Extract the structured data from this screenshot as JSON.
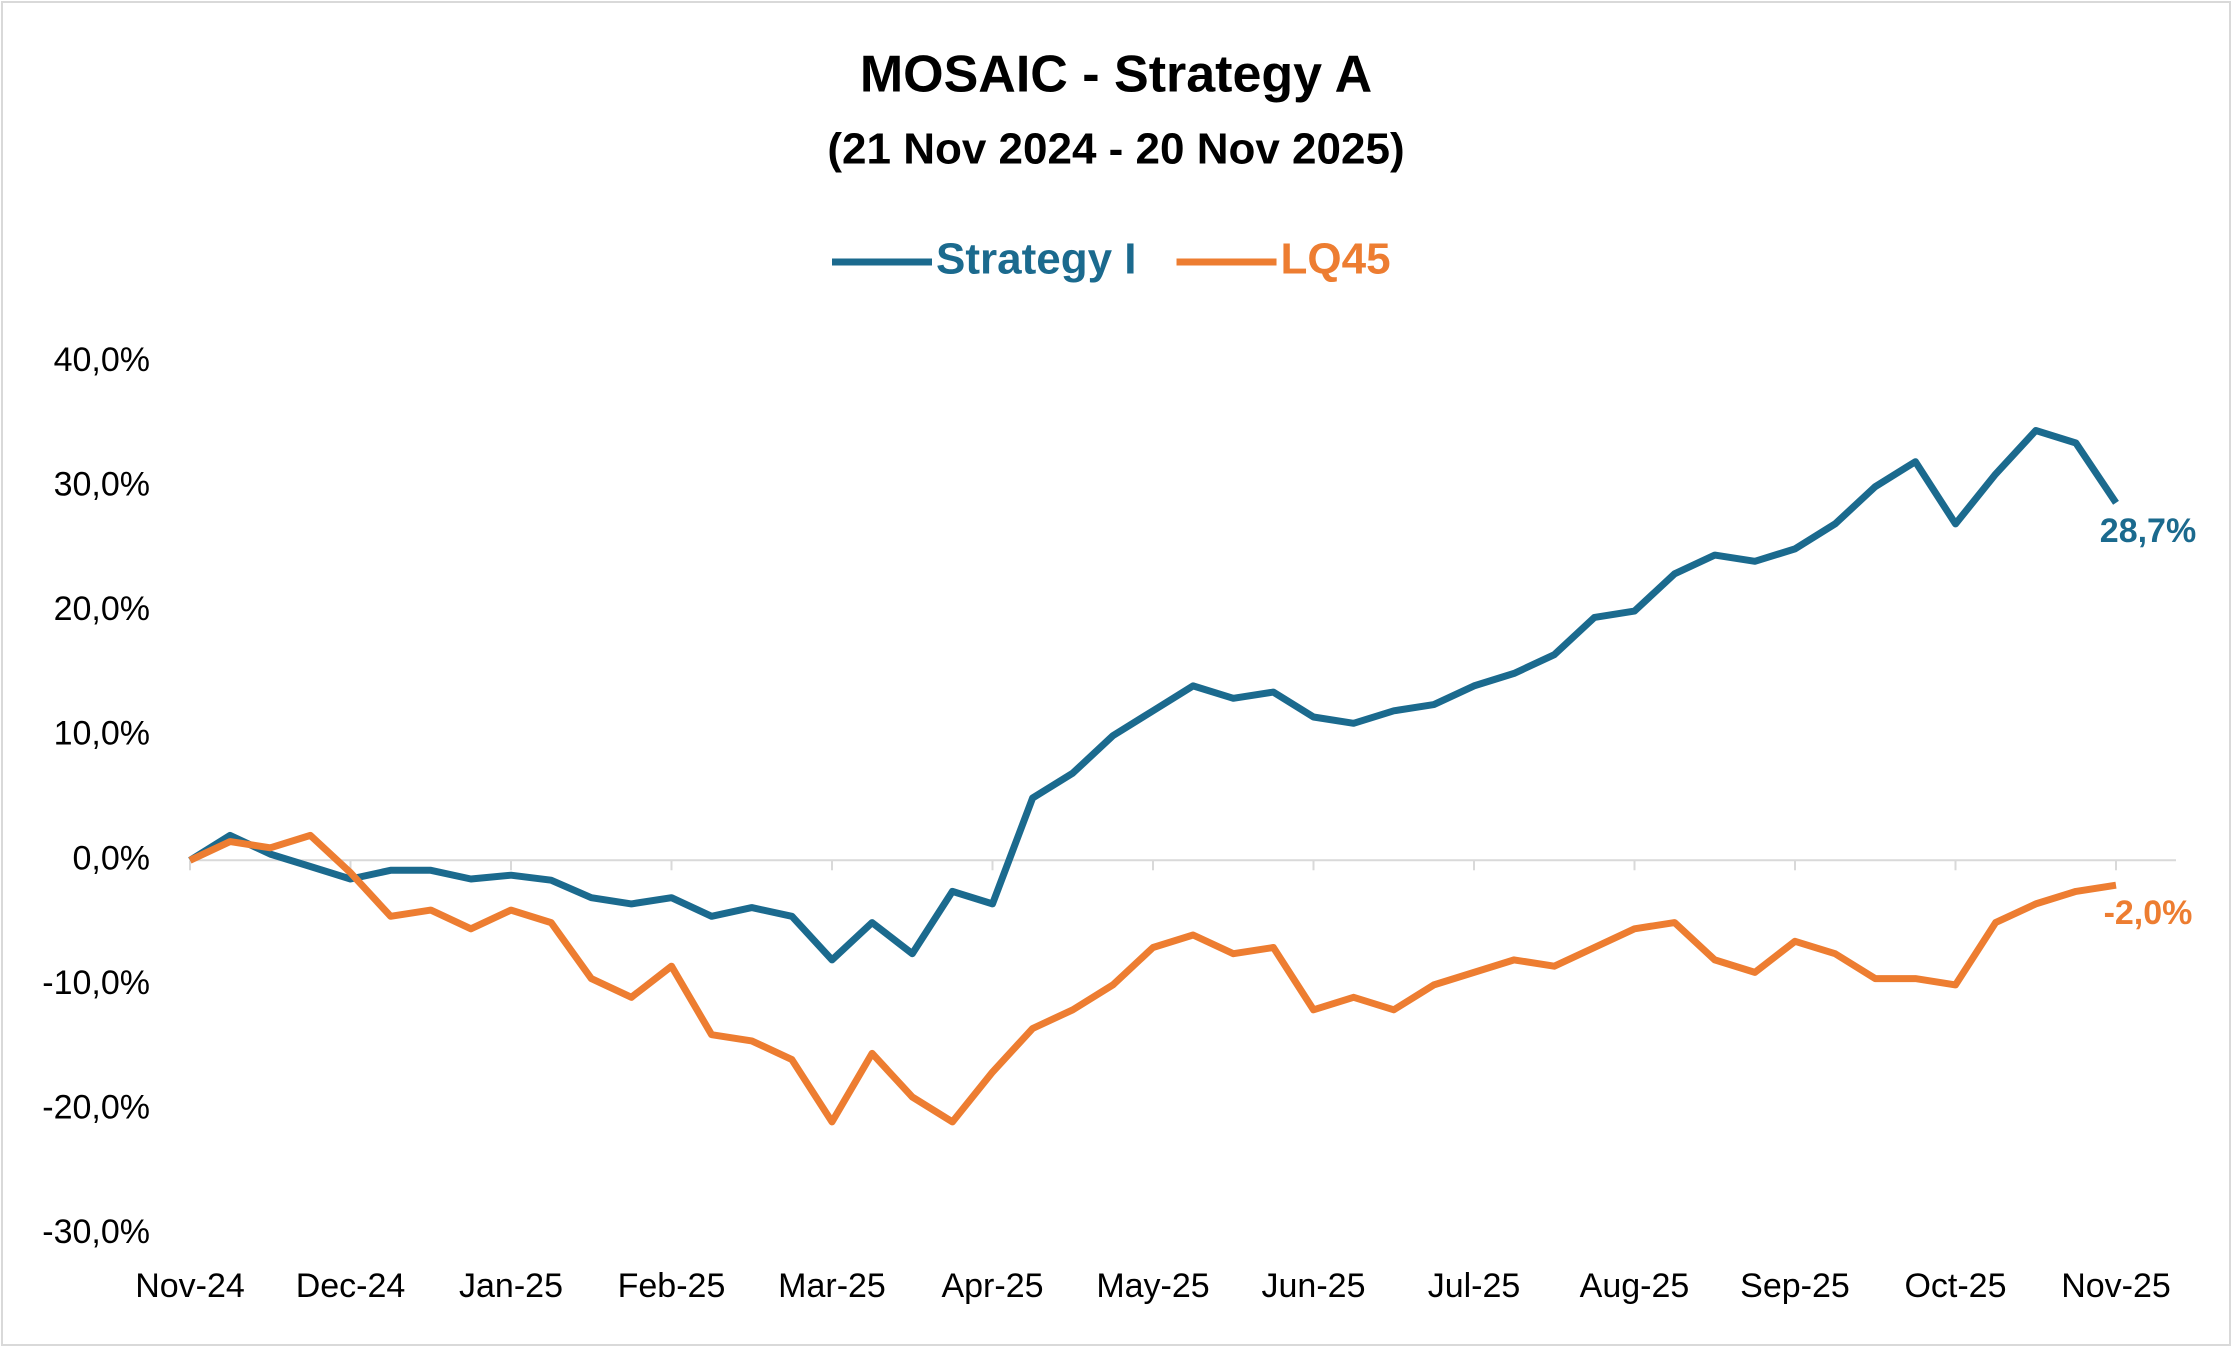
{
  "chart_data": {
    "type": "line",
    "title": "MOSAIC - Strategy A",
    "subtitle": "(21 Nov 2024 - 20 Nov 2025)",
    "categories": [
      "Nov-24",
      null,
      null,
      null,
      "Dec-24",
      null,
      null,
      null,
      "Jan-25",
      null,
      null,
      null,
      "Feb-25",
      null,
      null,
      null,
      "Mar-25",
      null,
      null,
      null,
      "Apr-25",
      null,
      null,
      null,
      "May-25",
      null,
      null,
      null,
      "Jun-25",
      null,
      null,
      null,
      "Jul-25",
      null,
      null,
      null,
      "Aug-25",
      null,
      null,
      null,
      "Sep-25",
      null,
      null,
      null,
      "Oct-25",
      null,
      null,
      null,
      "Nov-25"
    ],
    "series": [
      {
        "name": "Strategy I",
        "color": "#1b6a8e",
        "values": [
          0,
          2.0,
          0.5,
          -0.5,
          -1.5,
          -0.8,
          -0.8,
          -1.5,
          -1.2,
          -1.6,
          -3.0,
          -3.5,
          -3.0,
          -4.5,
          -3.8,
          -4.5,
          -8.0,
          -5.0,
          -7.5,
          -2.5,
          -3.5,
          5.0,
          7.0,
          10.0,
          12.0,
          14.0,
          13.0,
          13.5,
          11.5,
          11.0,
          12.0,
          12.5,
          14.0,
          15.0,
          16.5,
          19.5,
          20.0,
          23.0,
          24.5,
          24.0,
          25.0,
          27.0,
          30.0,
          32.0,
          27.0,
          31.0,
          34.5,
          33.5,
          28.7
        ],
        "value_labels": [
          null,
          null,
          null,
          null,
          null,
          null,
          null,
          null,
          null,
          null,
          null,
          null,
          null,
          null,
          null,
          null,
          null,
          null,
          null,
          null,
          null,
          null,
          null,
          null,
          null,
          null,
          null,
          null,
          null,
          null,
          null,
          null,
          null,
          null,
          null,
          null,
          null,
          null,
          null,
          null,
          null,
          null,
          null,
          null,
          null,
          null,
          null,
          null,
          "28,7%"
        ]
      },
      {
        "name": "LQ45",
        "color": "#ed7d31",
        "values": [
          0,
          1.5,
          1.0,
          2.0,
          -1.0,
          -4.5,
          -4.0,
          -5.5,
          -4.0,
          -5.0,
          -9.5,
          -11.0,
          -8.5,
          -14.0,
          -14.5,
          -16.0,
          -21.0,
          -15.5,
          -19.0,
          -21.0,
          -17.0,
          -13.5,
          -12.0,
          -10.0,
          -7.0,
          -6.0,
          -7.5,
          -7.0,
          -12.0,
          -11.0,
          -12.0,
          -10.0,
          -9.0,
          -8.0,
          -8.5,
          -7.0,
          -5.5,
          -5.0,
          -8.0,
          -9.0,
          -6.5,
          -7.5,
          -9.5,
          -9.5,
          -10.0,
          -5.0,
          -3.5,
          -2.5,
          -2.0
        ],
        "value_labels": [
          null,
          null,
          null,
          null,
          null,
          null,
          null,
          null,
          null,
          null,
          null,
          null,
          null,
          null,
          null,
          null,
          null,
          null,
          null,
          null,
          null,
          null,
          null,
          null,
          null,
          null,
          null,
          null,
          null,
          null,
          null,
          null,
          null,
          null,
          null,
          null,
          null,
          null,
          null,
          null,
          null,
          null,
          null,
          null,
          null,
          null,
          null,
          null,
          "-2,0%"
        ]
      }
    ],
    "ylim": [
      -30,
      40
    ],
    "yticks": [
      {
        "value": -30,
        "label": "-30,0%"
      },
      {
        "value": -20,
        "label": "-20,0%"
      },
      {
        "value": -10,
        "label": "-10,0%"
      },
      {
        "value": 0,
        "label": "0,0%"
      },
      {
        "value": 10,
        "label": "10,0%"
      },
      {
        "value": 20,
        "label": "20,0%"
      },
      {
        "value": 30,
        "label": "30,0%"
      },
      {
        "value": 40,
        "label": "40,0%"
      }
    ],
    "grid": false,
    "legend": "top"
  }
}
